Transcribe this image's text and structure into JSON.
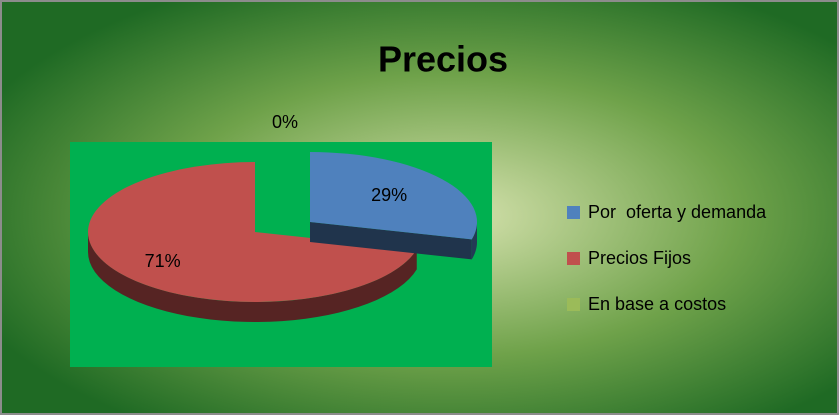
{
  "chart_data": {
    "type": "pie3d",
    "title": "Precios",
    "categories": [
      "Por  oferta y demanda",
      "Precios Fijos",
      "En base a costos"
    ],
    "values": [
      29,
      71,
      0
    ],
    "value_labels": [
      "29%",
      "71%",
      "0%"
    ],
    "colors": [
      "#4f81bd",
      "#c0504d",
      "#9bbb59"
    ],
    "legend": "right"
  }
}
